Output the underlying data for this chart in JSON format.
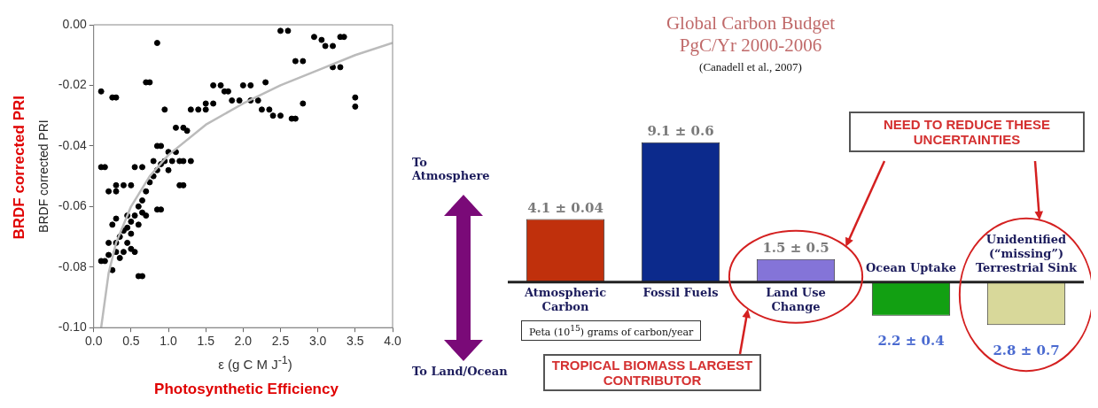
{
  "chart_data": [
    {
      "type": "scatter",
      "xlabel": "ε (g C M J$^{-1}$)",
      "ylabel": "BRDF corrected PRI",
      "annotations": [
        "BRDF corrected PRI",
        "Photosynthetic Efficiency"
      ],
      "xlim": [
        0,
        4
      ],
      "xticks": [
        {
          "value": 0,
          "label": "0.0"
        },
        {
          "value": 0.5,
          "label": "0.5"
        },
        {
          "value": 1,
          "label": "1.0"
        },
        {
          "value": 1.5,
          "label": "1.5"
        },
        {
          "value": 2,
          "label": "2.0"
        },
        {
          "value": 2.5,
          "label": "2.5"
        },
        {
          "value": 3,
          "label": "3.0"
        },
        {
          "value": 3.5,
          "label": "3.5"
        },
        {
          "value": 4,
          "label": "4.0"
        }
      ],
      "ylim": [
        -0.1,
        0
      ],
      "yticks": [
        {
          "value": -0.1,
          "label": "-0.10"
        },
        {
          "value": -0.08,
          "label": "-0.08"
        },
        {
          "value": -0.06,
          "label": "-0.06"
        },
        {
          "value": -0.04,
          "label": "-0.04"
        },
        {
          "value": -0.02,
          "label": "-0.02"
        },
        {
          "value": 0,
          "label": "0.00"
        }
      ],
      "grid": false,
      "series": [
        {
          "type": "scatter",
          "color": "#000000",
          "marker": "circle",
          "x": [
            0.1,
            0.25,
            0.3,
            0.85,
            0.7,
            0.75,
            0.95,
            0.1,
            0.15,
            0.2,
            0.3,
            0.3,
            0.4,
            0.5,
            0.55,
            0.65,
            0.85,
            0.9,
            0.85,
            0.9,
            0.6,
            0.65,
            0.1,
            0.15,
            0.25,
            0.2,
            0.3,
            0.35,
            0.4,
            0.25,
            0.3,
            0.45,
            0.5,
            0.55,
            0.6,
            0.65,
            0.7,
            0.75,
            0.8,
            0.85,
            0.9,
            0.95,
            0.8,
            1.0,
            1.0,
            1.1,
            1.05,
            1.15,
            1.2,
            1.3,
            1.15,
            1.2,
            1.1,
            1.2,
            1.25,
            1.3,
            1.4,
            1.5,
            1.5,
            1.6,
            1.6,
            1.7,
            1.8,
            1.75,
            1.85,
            1.95,
            2.0,
            2.1,
            2.1,
            2.2,
            2.25,
            2.35,
            2.3,
            2.4,
            2.5,
            2.5,
            2.6,
            2.65,
            2.7,
            2.7,
            2.8,
            2.8,
            2.95,
            3.05,
            3.1,
            3.2,
            3.2,
            3.3,
            3.35,
            3.3,
            3.5,
            3.5,
            0.2,
            0.3,
            0.4,
            0.45,
            0.5,
            0.55,
            0.35,
            0.6,
            0.65,
            0.5,
            0.45,
            0.7
          ],
          "values": [
            -0.022,
            -0.024,
            -0.024,
            -0.006,
            -0.019,
            -0.019,
            -0.028,
            -0.047,
            -0.047,
            -0.055,
            -0.055,
            -0.053,
            -0.053,
            -0.053,
            -0.047,
            -0.047,
            -0.04,
            -0.04,
            -0.061,
            -0.061,
            -0.083,
            -0.083,
            -0.078,
            -0.078,
            -0.081,
            -0.072,
            -0.075,
            -0.07,
            -0.068,
            -0.066,
            -0.064,
            -0.063,
            -0.065,
            -0.063,
            -0.06,
            -0.058,
            -0.055,
            -0.052,
            -0.05,
            -0.048,
            -0.046,
            -0.045,
            -0.045,
            -0.048,
            -0.042,
            -0.042,
            -0.045,
            -0.045,
            -0.045,
            -0.045,
            -0.053,
            -0.053,
            -0.034,
            -0.034,
            -0.035,
            -0.028,
            -0.028,
            -0.028,
            -0.026,
            -0.026,
            -0.02,
            -0.02,
            -0.022,
            -0.022,
            -0.025,
            -0.025,
            -0.02,
            -0.02,
            -0.025,
            -0.025,
            -0.028,
            -0.028,
            -0.019,
            -0.03,
            -0.03,
            -0.002,
            -0.002,
            -0.031,
            -0.031,
            -0.012,
            -0.012,
            -0.026,
            -0.004,
            -0.005,
            -0.007,
            -0.007,
            -0.014,
            -0.014,
            -0.004,
            -0.004,
            -0.027,
            -0.024,
            -0.076,
            -0.072,
            -0.075,
            -0.072,
            -0.074,
            -0.075,
            -0.077,
            -0.066,
            -0.062,
            -0.069,
            -0.067,
            -0.063
          ]
        },
        {
          "type": "line",
          "color": "#bbbbbb",
          "marker": "none",
          "x": [
            0.1,
            0.2,
            0.3,
            0.5,
            0.75,
            1.0,
            1.5,
            2.0,
            2.5,
            3.0,
            3.5,
            4.0
          ],
          "values": [
            -0.1,
            -0.082,
            -0.072,
            -0.06,
            -0.05,
            -0.043,
            -0.033,
            -0.026,
            -0.02,
            -0.015,
            -0.01,
            -0.006
          ]
        }
      ]
    },
    {
      "type": "bar",
      "title": "Global Carbon Budget\nPgC/Yr 2000-2006",
      "subtitle": "(Canadell et al., 2007)",
      "categories": [
        "Atmospheric Carbon",
        "Fossil Fuels",
        "Land Use Change",
        "Ocean Uptake",
        "Unidentified (“missing”) Terrestrial Sink"
      ],
      "values": [
        4.1,
        9.1,
        1.5,
        -2.2,
        -2.8
      ],
      "value_labels": [
        "4.1 ± 0.04",
        "9.1 ± 0.6",
        "1.5 ± 0.5",
        null,
        null
      ],
      "colors": [
        "#c0300c",
        "#0c2a8c",
        "#8474d8",
        "#12a012",
        "#d8d89a"
      ],
      "legend": false,
      "annotations": [
        "To Atmosphere",
        "To Land/Ocean",
        "Peta (10$^{15}$) grams of carbon/year",
        "NEED TO REDUCE THESE UNCERTAINTIES",
        "TROPICAL BIOMASS LARGEST CONTRIBUTOR",
        "2.2 ± 0.4",
        "2.8 ± 0.7"
      ]
    }
  ]
}
